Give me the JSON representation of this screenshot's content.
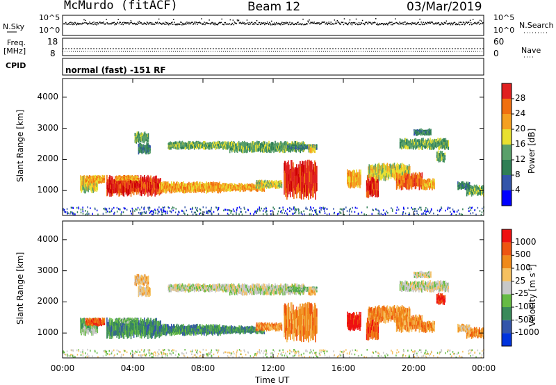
{
  "header": {
    "title": "McMurdo (fitACF)",
    "beam": "Beam 12",
    "date": "03/Mar/2019"
  },
  "aux": {
    "nsky_label": "N.Sky",
    "nsearch_label": "N.Search",
    "freq_label_1": "Freq.",
    "freq_label_2": "[MHz]",
    "nave_label": "Nave",
    "cpid_label": "CPID",
    "cpid_value": "normal (fast) -151 RF",
    "noise_left_ticks": [
      "10^5",
      "10^0"
    ],
    "noise_right_ticks": [
      "10^5",
      "10^0"
    ],
    "freq_left_ticks": [
      "18",
      "8"
    ],
    "nave_right_ticks": [
      "60",
      "0"
    ]
  },
  "colors": {
    "power": [
      "#0000ff",
      "#3355aa",
      "#2f7f55",
      "#5aa06a",
      "#e8e030",
      "#f5a020",
      "#f07010",
      "#e02020",
      "#cc0000"
    ],
    "velocity": [
      "#ee1111",
      "#ee5511",
      "#f08a1a",
      "#f5c060",
      "#c8c8c8",
      "#66bb44",
      "#3a8a5a",
      "#3355aa",
      "#0033dd"
    ]
  },
  "chart_data": [
    {
      "type": "heatmap",
      "panel": "power",
      "xlabel": "Time UT",
      "ylabel": "Slant Range [km]",
      "xlim": [
        "00:00",
        "00:00"
      ],
      "x_ticks": [
        "00:00",
        "04:00",
        "08:00",
        "12:00",
        "16:00",
        "20:00",
        "00:00"
      ],
      "ylim": [
        200,
        4600
      ],
      "y_ticks": [
        1000,
        2000,
        3000,
        4000
      ],
      "colorbar": {
        "label": "Power [dB]",
        "ticks": [
          4,
          8,
          12,
          16,
          20,
          24,
          28
        ]
      }
    },
    {
      "type": "heatmap",
      "panel": "velocity",
      "xlabel": "Time UT",
      "ylabel": "Slant Range [km]",
      "xlim": [
        "00:00",
        "00:00"
      ],
      "x_ticks": [
        "00:00",
        "04:00",
        "08:00",
        "12:00",
        "16:00",
        "20:00",
        "00:00"
      ],
      "ylim": [
        200,
        4600
      ],
      "y_ticks": [
        1000,
        2000,
        3000,
        4000
      ],
      "colorbar": {
        "label": "Velocity [m s",
        "label_sup": "-1",
        "label_end": "]",
        "ticks": [
          1000,
          500,
          100,
          25,
          -25,
          -100,
          -500,
          -1000
        ]
      }
    }
  ]
}
